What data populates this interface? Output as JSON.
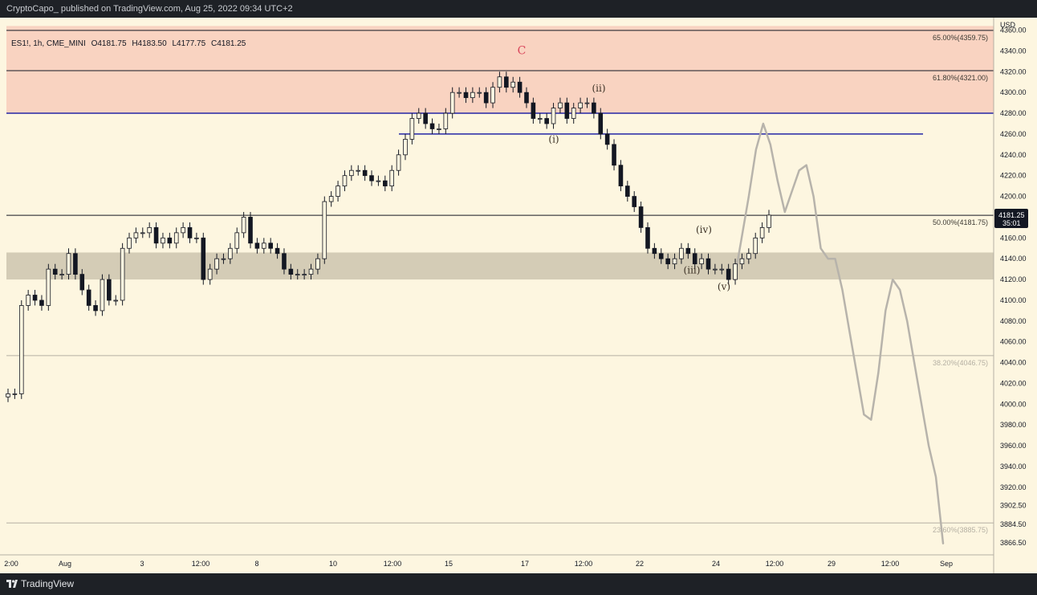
{
  "header": {
    "publish_line": "CryptoCapo_ published on TradingView.com, Aug 25, 2022 09:34 UTC+2"
  },
  "symbol_bar": {
    "symbol": "ES1!, 1h, CME_MINI",
    "open": "O4181.75",
    "high": "H4183.50",
    "low": "L4177.75",
    "close": "C4181.25"
  },
  "footer": {
    "brand": "TradingView"
  },
  "price_axis": {
    "currency": "USD",
    "ticks": [
      "4360.00",
      "4340.00",
      "4320.00",
      "4300.00",
      "4280.00",
      "4260.00",
      "4240.00",
      "4220.00",
      "4200.00",
      "4160.00",
      "4140.00",
      "4120.00",
      "4100.00",
      "4080.00",
      "4060.00",
      "4040.00",
      "4020.00",
      "4000.00",
      "3980.00",
      "3960.00",
      "3940.00",
      "3920.00",
      "3902.50",
      "3884.50",
      "3866.50"
    ],
    "last_price": "4181.25",
    "countdown": "35:01"
  },
  "time_axis": {
    "labels": [
      "2:00",
      "Aug",
      "3",
      "12:00",
      "8",
      "10",
      "12:00",
      "15",
      "17",
      "12:00",
      "22",
      "24",
      "12:00",
      "29",
      "12:00",
      "Sep"
    ]
  },
  "colors": {
    "chart_bg": "#fdf6e0",
    "resistance_zone": "#f9d3c1",
    "support_zone": "#d4ccb6",
    "blue_level": "#2426a6",
    "projection_path": "#b7b3ab",
    "wave_c_label": "#d9465b",
    "candle": "#131722"
  },
  "chart_data": {
    "type": "candlestick",
    "symbol": "ES1!",
    "timeframe": "1h",
    "price_range": [
      3855,
      4372
    ],
    "fib_levels": [
      {
        "label": "65.00%(4359.75)",
        "price": 4359.75
      },
      {
        "label": "61.80%(4321.00)",
        "price": 4321.0
      },
      {
        "label": "50.00%(4181.75)",
        "price": 4181.75
      },
      {
        "label": "38.20%(4046.75)",
        "price": 4046.75
      },
      {
        "label": "23.60%(3885.75)",
        "price": 3885.75
      }
    ],
    "zones": [
      {
        "name": "resistance-zone",
        "from": 4280,
        "to": 4364
      },
      {
        "name": "support-zone",
        "from": 4120,
        "to": 4146
      }
    ],
    "horizontal_levels": [
      {
        "name": "blue-level-upper",
        "price": 4280
      },
      {
        "name": "blue-level-lower",
        "price": 4260
      }
    ],
    "wave_labels": [
      {
        "text": "C",
        "price": 4337
      },
      {
        "text": "(i)",
        "price": 4252
      },
      {
        "text": "(ii)",
        "price": 4301
      },
      {
        "text": "(iii)",
        "price": 4126
      },
      {
        "text": "(iv)",
        "price": 4165
      },
      {
        "text": "(v)",
        "price": 4110
      }
    ],
    "price_path": [
      4010,
      4010,
      4095,
      4105,
      4100,
      4095,
      4130,
      4125,
      4125,
      4145,
      4125,
      4110,
      4095,
      4090,
      4120,
      4100,
      4100,
      4150,
      4160,
      4165,
      4165,
      4170,
      4155,
      4160,
      4155,
      4165,
      4170,
      4160,
      4160,
      4120,
      4130,
      4140,
      4140,
      4150,
      4165,
      4180,
      4155,
      4150,
      4155,
      4150,
      4145,
      4130,
      4125,
      4125,
      4125,
      4130,
      4140,
      4195,
      4200,
      4210,
      4220,
      4225,
      4225,
      4220,
      4215,
      4215,
      4210,
      4225,
      4240,
      4255,
      4275,
      4280,
      4270,
      4265,
      4265,
      4280,
      4300,
      4300,
      4295,
      4300,
      4300,
      4290,
      4305,
      4315,
      4305,
      4310,
      4300,
      4290,
      4275,
      4275,
      4270,
      4285,
      4290,
      4275,
      4285,
      4290,
      4290,
      4280,
      4260,
      4250,
      4230,
      4210,
      4200,
      4190,
      4170,
      4150,
      4145,
      4140,
      4135,
      4140,
      4150,
      4145,
      4135,
      4140,
      4130,
      4130,
      4130,
      4120,
      4135,
      4140,
      4145,
      4160,
      4170,
      4182
    ],
    "projection_path": [
      4120,
      4160,
      4200,
      4245,
      4270,
      4250,
      4215,
      4185,
      4205,
      4225,
      4230,
      4200,
      4150,
      4140,
      4140,
      4110,
      4070,
      4030,
      3990,
      3985,
      4030,
      4090,
      4120,
      4110,
      4080,
      4040,
      4000,
      3960,
      3930,
      3866
    ]
  }
}
